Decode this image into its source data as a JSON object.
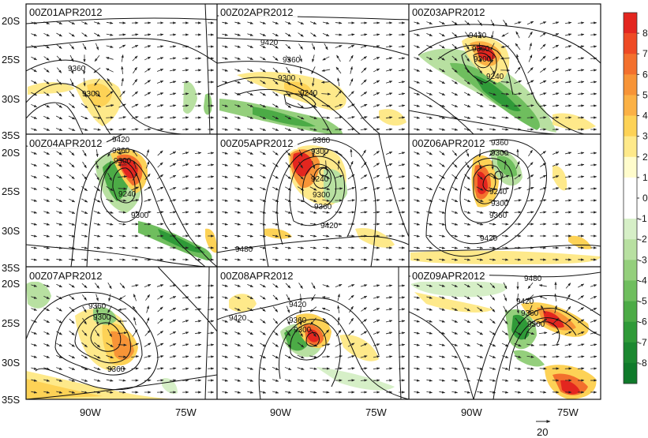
{
  "figure": {
    "panels": [
      {
        "title": "00Z01APR2012",
        "contour_labels": [
          "9360",
          "9300"
        ],
        "vortex": {
          "lon": -88,
          "lat": -29
        }
      },
      {
        "title": "00Z02APR2012",
        "contour_labels": [
          "9420",
          "9360",
          "9300",
          "9240"
        ],
        "vortex": {
          "lon": -83,
          "lat": -29
        }
      },
      {
        "title": "00Z03APR2012",
        "contour_labels": [
          "9420",
          "9360",
          "9300",
          "9240"
        ],
        "vortex": {
          "lon": -85,
          "lat": -26
        }
      },
      {
        "title": "00Z04APR2012",
        "contour_labels": [
          "9420",
          "9360",
          "9300",
          "9240",
          "9300"
        ],
        "vortex": {
          "lon": -85,
          "lat": -23
        }
      },
      {
        "title": "00Z05APR2012",
        "contour_labels": [
          "9360",
          "9300",
          "9240",
          "9300",
          "9360",
          "9420",
          "9480"
        ],
        "vortex": {
          "lon": -82,
          "lat": -22
        }
      },
      {
        "title": "00Z06APR2012",
        "contour_labels": [
          "9360",
          "9300",
          "9240",
          "9300",
          "9360",
          "9420"
        ],
        "vortex": {
          "lon": -86,
          "lat": -22
        }
      },
      {
        "title": "00Z07APR2012",
        "contour_labels": [
          "9360",
          "9300",
          "9360"
        ],
        "vortex": {
          "lon": -85,
          "lat": -26
        }
      },
      {
        "title": "00Z08APR2012",
        "contour_labels": [
          "9420",
          "9420",
          "9360",
          "9300"
        ],
        "vortex": {
          "lon": -84,
          "lat": -26
        }
      },
      {
        "title": "00Z09APR2012",
        "contour_labels": [
          "9480",
          "9420",
          "9360",
          "9300"
        ],
        "vortex": {
          "lon": -80,
          "lat": -24
        }
      }
    ],
    "lat_labels": [
      "20S",
      "25S",
      "30S",
      "35S"
    ],
    "lon_labels": [
      "90W",
      "75W"
    ],
    "vector_reference": "20",
    "colorbar": {
      "labels": [
        "8",
        "7",
        "6",
        "5",
        "4",
        "3",
        "2",
        "1",
        "0",
        "-1",
        "-2",
        "-3",
        "-4",
        "-5",
        "-6",
        "-7",
        "-8"
      ],
      "colors": [
        "#e3261f",
        "#ee4a24",
        "#f3702d",
        "#f79437",
        "#fbb145",
        "#fdd256",
        "#fee98a",
        "#fffccc",
        "#ffffff",
        "#ffffff",
        "#d6efc7",
        "#b8e0a1",
        "#94cf7c",
        "#6fbe5e",
        "#4cab46",
        "#2f9a38",
        "#1b8830",
        "#0f7a2a"
      ]
    },
    "colors": {
      "positive": "#e3261f",
      "negative": "#1b8830",
      "vectors": "#222222",
      "contours": "#111111"
    }
  }
}
